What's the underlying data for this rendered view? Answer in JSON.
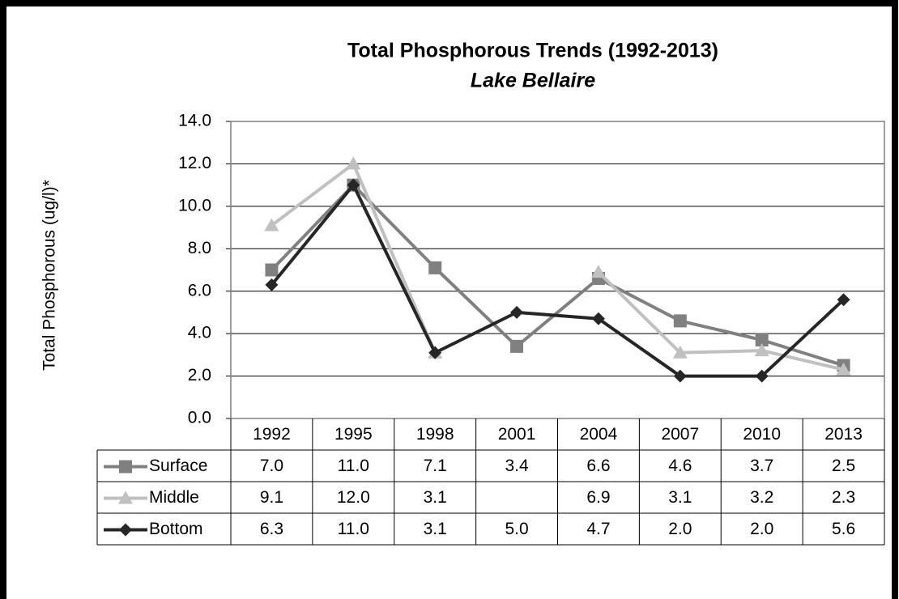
{
  "chart_data": {
    "type": "line",
    "title": "Total Phosphorous Trends (1992-2013)",
    "subtitle": "Lake Bellaire",
    "y_label": "Total Phosphorous (ug/l)*",
    "categories": [
      "1992",
      "1995",
      "1998",
      "2001",
      "2004",
      "2007",
      "2010",
      "2013"
    ],
    "series": [
      {
        "name": "Surface",
        "color": "#808080",
        "marker": "square",
        "values": [
          7.0,
          11.0,
          7.1,
          3.4,
          6.6,
          4.6,
          3.7,
          2.5
        ],
        "value_labels": [
          "7.0",
          "11.0",
          "7.1",
          "3.4",
          "6.6",
          "4.6",
          "3.7",
          "2.5"
        ]
      },
      {
        "name": "Middle",
        "color": "#c0c0c0",
        "marker": "triangle",
        "values": [
          9.1,
          12.0,
          3.1,
          null,
          6.9,
          3.1,
          3.2,
          2.3
        ],
        "value_labels": [
          "9.1",
          "12.0",
          "3.1",
          null,
          "6.9",
          "3.1",
          "3.2",
          "2.3"
        ]
      },
      {
        "name": "Bottom",
        "color": "#262626",
        "marker": "diamond",
        "values": [
          6.3,
          11.0,
          3.1,
          5.0,
          4.7,
          2.0,
          2.0,
          5.6
        ],
        "value_labels": [
          "6.3",
          "11.0",
          "3.1",
          "5.0",
          "4.7",
          "2.0",
          "2.0",
          "5.6"
        ]
      }
    ],
    "ylim": [
      0,
      14
    ],
    "yticks": [
      {
        "value": 0,
        "label": "0.0"
      },
      {
        "value": 2,
        "label": "2.0"
      },
      {
        "value": 4,
        "label": "4.0"
      },
      {
        "value": 6,
        "label": "6.0"
      },
      {
        "value": 8,
        "label": "8.0"
      },
      {
        "value": 10,
        "label": "10.0"
      },
      {
        "value": 12,
        "label": "12.0"
      },
      {
        "value": 14,
        "label": "14.0"
      }
    ],
    "grid": true,
    "data_table": true
  }
}
